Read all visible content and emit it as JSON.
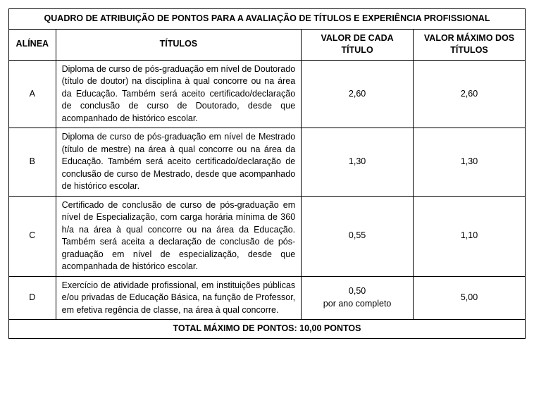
{
  "table": {
    "title": "QUADRO DE ATRIBUIÇÃO DE PONTOS PARA A AVALIAÇÃO DE TÍTULOS E EXPERIÊNCIA PROFISSIONAL",
    "columns": {
      "alinea": "ALÍNEA",
      "titulos": "TÍTULOS",
      "valor_cada": "VALOR DE CADA TÍTULO",
      "valor_max": "VALOR MÁXIMO DOS TÍTULOS"
    },
    "rows": [
      {
        "alinea": "A",
        "titulos": "Diploma de curso de pós-graduação em nível de Doutorado (título de doutor) na disciplina à qual concorre ou na área da Educação. Também será aceito certificado/declaração de conclusão de curso de Doutorado, desde que acompanhado de histórico escolar.",
        "valor_cada": "2,60",
        "valor_cada_extra": "",
        "valor_max": "2,60"
      },
      {
        "alinea": "B",
        "titulos": "Diploma de curso de pós-graduação em nível de Mestrado (título de mestre) na área à qual concorre ou na área da Educação. Também será aceito certificado/declaração de conclusão de curso de Mestrado, desde que acompanhado de histórico escolar.",
        "valor_cada": "1,30",
        "valor_cada_extra": "",
        "valor_max": "1,30"
      },
      {
        "alinea": "C",
        "titulos": "Certificado de conclusão de curso de pós-graduação em nível de Especialização, com carga horária mínima de 360 h/a na área à qual concorre ou na área da Educação. Também será aceita a declaração de conclusão de pós-graduação em nível de especialização, desde que acompanhada de histórico escolar.",
        "valor_cada": "0,55",
        "valor_cada_extra": "",
        "valor_max": "1,10"
      },
      {
        "alinea": "D",
        "titulos": "Exercício de atividade profissional, em instituições públicas e/ou privadas de Educação Básica, na função de Professor, em efetiva regência de classe, na área à qual concorre.",
        "valor_cada": "0,50",
        "valor_cada_extra": "por ano completo",
        "valor_max": "5,00"
      }
    ],
    "total": "TOTAL MÁXIMO DE PONTOS: 10,00 PONTOS"
  },
  "style": {
    "font_family": "Arial",
    "font_size_pt": 12.5,
    "text_color": "#000000",
    "border_color": "#000000",
    "background_color": "#ffffff"
  }
}
